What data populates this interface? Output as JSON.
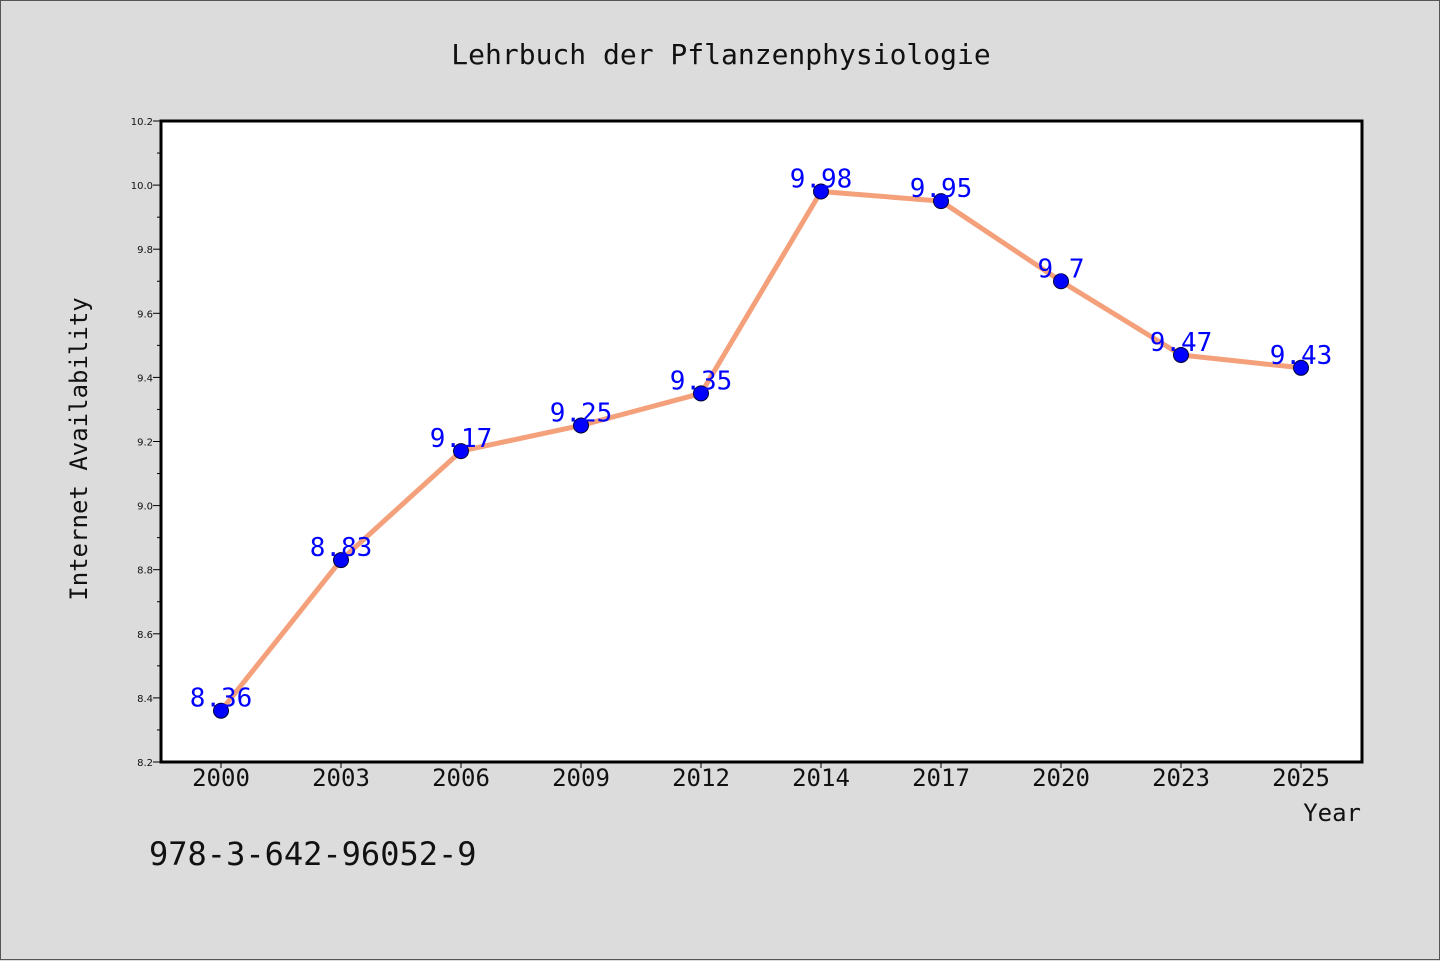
{
  "chart_data": {
    "type": "line",
    "title": "Lehrbuch der Pflanzenphysiologie",
    "xlabel": "Year",
    "ylabel": "Internet Availability",
    "categories": [
      "2000",
      "2003",
      "2006",
      "2009",
      "2012",
      "2014",
      "2017",
      "2020",
      "2023",
      "2025"
    ],
    "series": [
      {
        "values": [
          8.36,
          8.83,
          9.17,
          9.25,
          9.35,
          9.98,
          9.95,
          9.7,
          9.47,
          9.43
        ],
        "line_color": "#f4a07a",
        "marker_color": "#0000ff",
        "label_color": "#0000ff"
      }
    ],
    "data_labels": [
      "8.36",
      "8.83",
      "9.17",
      "9.25",
      "9.35",
      "9.98",
      "9.95",
      "9.7",
      "9.47",
      "9.43"
    ],
    "ylim": [
      8.2,
      10.2
    ],
    "yticks": [
      "8.2",
      "8.4",
      "8.6",
      "8.8",
      "9.0",
      "9.2",
      "9.4",
      "9.6",
      "9.8",
      "10.0",
      "10.2"
    ],
    "grid": false,
    "legend": "none"
  },
  "footer": {
    "isbn": "978-3-642-96052-9"
  },
  "colors": {
    "figure_background": "#dcdcdc",
    "plot_background": "#ffffff",
    "axes_border": "#000000"
  }
}
